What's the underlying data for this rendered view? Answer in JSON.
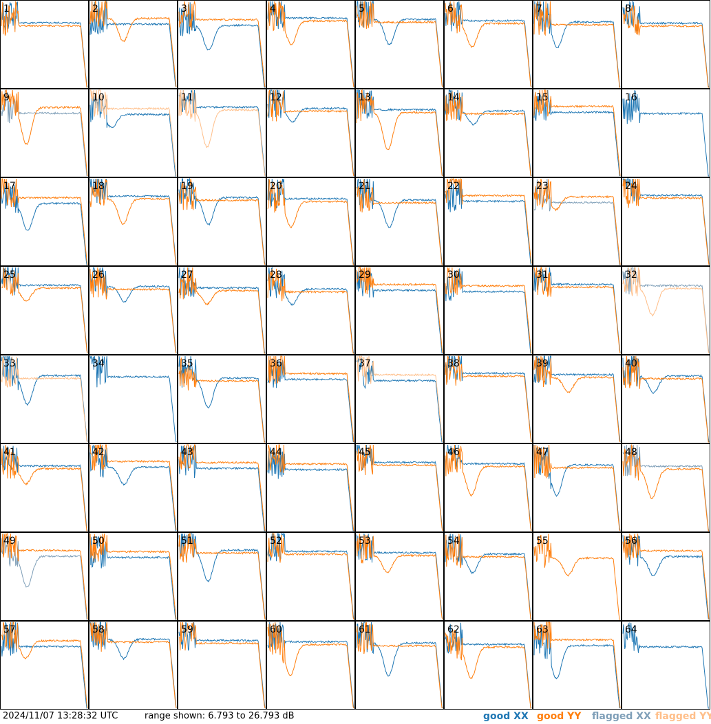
{
  "chart_data": {
    "type": "line",
    "layout": "8x8 small multiples",
    "panels_count": 64,
    "panel_labels": [
      "1",
      "2",
      "3",
      "4",
      "5",
      "6",
      "7",
      "8",
      "9",
      "10",
      "11",
      "12",
      "13",
      "14",
      "15",
      "16",
      "17",
      "18",
      "19",
      "20",
      "21",
      "22",
      "23",
      "24",
      "25",
      "26",
      "27",
      "28",
      "29",
      "30",
      "31",
      "32",
      "33",
      "34",
      "35",
      "36",
      "37",
      "38",
      "39",
      "40",
      "41",
      "42",
      "43",
      "44",
      "45",
      "46",
      "47",
      "48",
      "49",
      "50",
      "51",
      "52",
      "53",
      "54",
      "55",
      "56",
      "57",
      "58",
      "59",
      "60",
      "61",
      "62",
      "63",
      "64"
    ],
    "axes_visible": false,
    "ylim": [
      6.793,
      26.793
    ],
    "yunit": "dB",
    "series": [
      {
        "name": "good XX",
        "color": "#1f77b4"
      },
      {
        "name": "good YY",
        "color": "#ff7f0e"
      },
      {
        "name": "flagged XX",
        "color": "#7f9fb8"
      },
      {
        "name": "flagged YY",
        "color": "#ffbf8a"
      }
    ],
    "panel_states": {
      "flagged_both": [
        32
      ],
      "flagged_xx": [
        9,
        23,
        48,
        49
      ],
      "flagged_yy": [
        10,
        11,
        33,
        37
      ],
      "missing_xx": [
        55
      ],
      "missing_yy": [
        16,
        34,
        64
      ]
    },
    "approx_plateau_db": {
      "xx": 22,
      "yy": 22
    }
  },
  "footer": {
    "timestamp": "2024/11/07 13:28:32 UTC",
    "range": "range shown: 6.793 to 26.793 dB"
  },
  "legend": [
    {
      "label": "good XX",
      "color": "#1f77b4"
    },
    {
      "label": "good YY",
      "color": "#ff7f0e"
    },
    {
      "label": "flagged XX",
      "color": "#7f9fb8"
    },
    {
      "label": "flagged YY",
      "color": "#ffbf8a"
    }
  ]
}
